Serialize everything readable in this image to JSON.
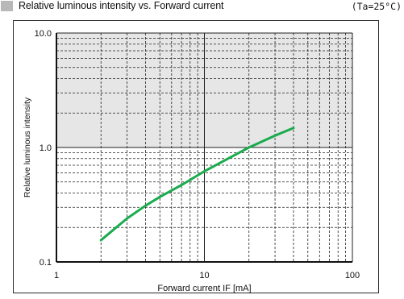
{
  "header": {
    "title": "Relative luminous intensity vs. Forward current",
    "condition": "(Ta=25°C)"
  },
  "colors": {
    "curve": "#1aab4d",
    "shaded_band": "#e6e6e6",
    "header_marker": "#b8b8b8"
  },
  "chart_data": {
    "type": "line",
    "title": "Relative luminous intensity vs. Forward current",
    "condition": "(Ta=25°C)",
    "xlabel": "Forward current IF [mA]",
    "ylabel": "Relative luminous intensity",
    "xscale": "log",
    "yscale": "log",
    "xlim": [
      1,
      100
    ],
    "ylim": [
      0.1,
      10
    ],
    "x_ticks": [
      "1",
      "10",
      "100"
    ],
    "y_ticks": [
      "0.1",
      "1.0",
      "10.0"
    ],
    "grid": true,
    "shaded_y_range": [
      1,
      10
    ],
    "series": [
      {
        "x": [
          2,
          3,
          4,
          5,
          7,
          10,
          15,
          20,
          30,
          40
        ],
        "values": [
          0.155,
          0.24,
          0.31,
          0.37,
          0.47,
          0.62,
          0.82,
          1.0,
          1.27,
          1.48
        ]
      }
    ]
  }
}
